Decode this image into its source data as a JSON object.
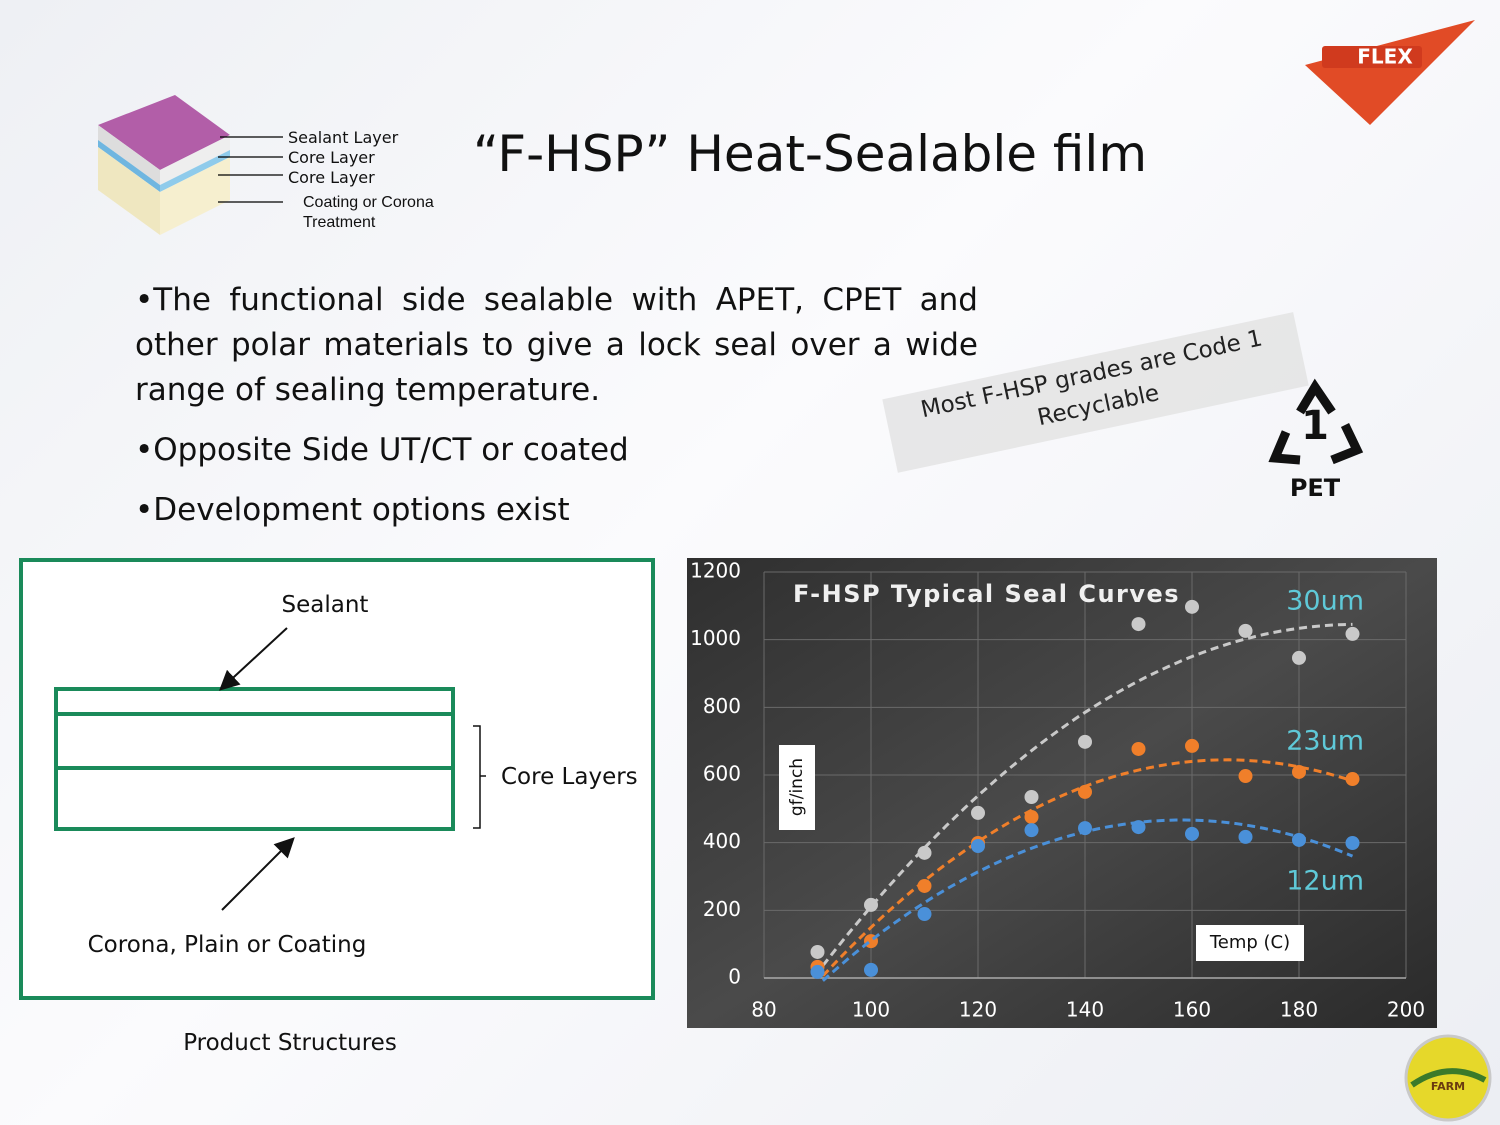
{
  "logo": "FLEX",
  "layers": [
    "Sealant Layer",
    "Core Layer",
    "Core Layer",
    "Coating or Corona Treatment"
  ],
  "title": "“F-HSP” Heat-Sealable film",
  "bullets": [
    "•The functional side sealable with APET, CPET and other polar materials to give a lock seal over a wide range of sealing temperature.",
    "•Opposite Side UT/CT or coated",
    "•Development options exist"
  ],
  "note": "Most F-HSP grades are Code 1 Recyclable",
  "recycle": {
    "code": "1",
    "label": "PET"
  },
  "structure": {
    "sealant": "Sealant",
    "core": "Core Layers",
    "bottom": "Corona, Plain or Coating",
    "caption": "Product Structures"
  },
  "badge": "FARM",
  "chart_data": {
    "type": "scatter",
    "title": "F-HSP Typical Seal Curves",
    "x_label": "Temp (C)",
    "y_label": "gf/inch",
    "x": [
      90,
      100,
      110,
      120,
      130,
      140,
      150,
      160,
      170,
      180,
      190
    ],
    "series": [
      {
        "name": "30um",
        "color": "#c9c9c9",
        "values": [
          77,
          216,
          370,
          488,
          535,
          698,
          1046,
          1097,
          1026,
          946,
          1017
        ]
      },
      {
        "name": "23um",
        "color": "#f07f2a",
        "values": [
          33,
          109,
          272,
          399,
          476,
          550,
          677,
          686,
          597,
          609,
          588
        ]
      },
      {
        "name": "12um",
        "color": "#4a90d9",
        "values": [
          18,
          24,
          189,
          390,
          437,
          443,
          446,
          426,
          417,
          408,
          399
        ]
      }
    ],
    "xlim": [
      80,
      200
    ],
    "xticks": [
      80,
      100,
      120,
      140,
      160,
      180,
      200
    ],
    "ylim": [
      0,
      1200
    ],
    "yticks": [
      0,
      200,
      400,
      600,
      800,
      1000,
      1200
    ],
    "grid": true,
    "trendline": "polynomial"
  }
}
